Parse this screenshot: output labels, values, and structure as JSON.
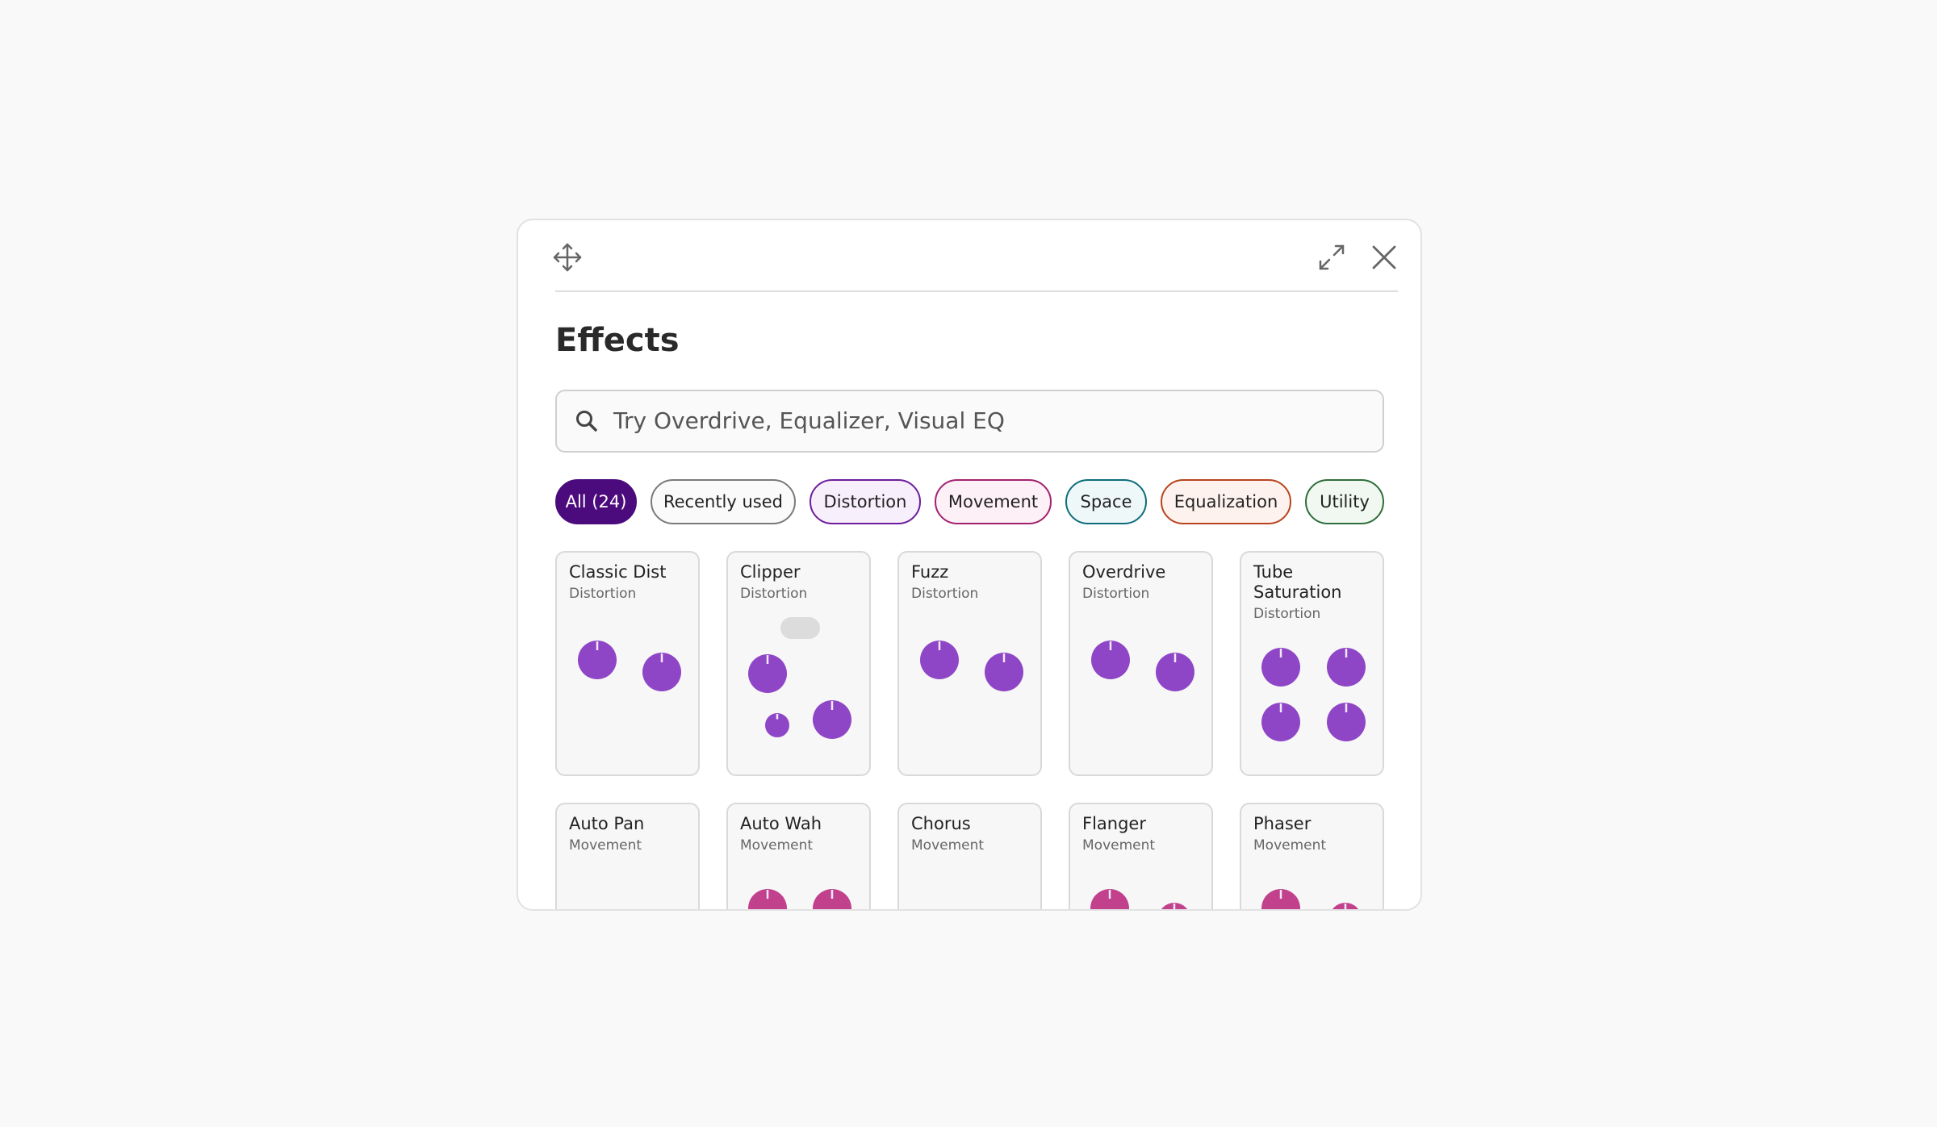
{
  "panel": {
    "title": "Effects",
    "search_placeholder": "Try Overdrive, Equalizer, Visual EQ",
    "chips": [
      "All (24)",
      "Recently used",
      "Distortion",
      "Movement",
      "Space",
      "Equalization",
      "Utility"
    ],
    "cards": [
      {
        "name": "Classic Dist",
        "category": "Distortion"
      },
      {
        "name": "Clipper",
        "category": "Distortion"
      },
      {
        "name": "Fuzz",
        "category": "Distortion"
      },
      {
        "name": "Overdrive",
        "category": "Distortion"
      },
      {
        "name": "Tube Saturation",
        "category": "Distortion"
      },
      {
        "name": "Auto Pan",
        "category": "Movement"
      },
      {
        "name": "Auto Wah",
        "category": "Movement"
      },
      {
        "name": "Chorus",
        "category": "Movement"
      },
      {
        "name": "Flanger",
        "category": "Movement"
      },
      {
        "name": "Phaser",
        "category": "Movement"
      }
    ]
  }
}
